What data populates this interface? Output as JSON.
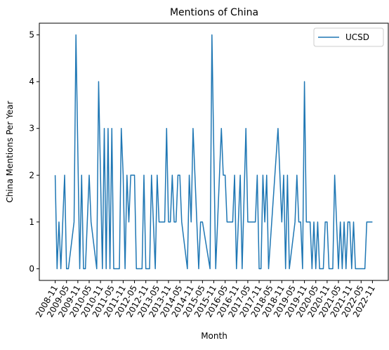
{
  "chart_data": {
    "type": "line",
    "title": "Mentions of China",
    "xlabel": "Month",
    "ylabel": "China Mentions Per Year",
    "ylim": [
      -0.25,
      5.25
    ],
    "yticks": [
      "0",
      "1",
      "2",
      "3",
      "4",
      "5"
    ],
    "xticks": [
      "2008-11",
      "2009-05",
      "2009-11",
      "2010-05",
      "2010-11",
      "2011-05",
      "2011-11",
      "2012-05",
      "2012-11",
      "2013-05",
      "2013-11",
      "2014-05",
      "2014-11",
      "2015-05",
      "2015-11",
      "2016-05",
      "2016-11",
      "2017-05",
      "2017-11",
      "2018-05",
      "2018-11",
      "2019-05",
      "2019-11",
      "2020-05",
      "2020-11",
      "2021-05",
      "2021-11",
      "2022-05",
      "2022-11"
    ],
    "legend": "top-right",
    "grid": false,
    "series": [
      {
        "name": "UCSD",
        "color": "#1f77b4",
        "points": [
          [
            "2008-11",
            2
          ],
          [
            "2008-12",
            0
          ],
          [
            "2009-01",
            1
          ],
          [
            "2009-02",
            0
          ],
          [
            "2009-04",
            2
          ],
          [
            "2009-05",
            0
          ],
          [
            "2009-06",
            0
          ],
          [
            "2009-09",
            1
          ],
          [
            "2009-10",
            5
          ],
          [
            "2009-12",
            0
          ],
          [
            "2010-01",
            2
          ],
          [
            "2010-02",
            0
          ],
          [
            "2010-03",
            0
          ],
          [
            "2010-05",
            2
          ],
          [
            "2010-06",
            1
          ],
          [
            "2010-09",
            0
          ],
          [
            "2010-10",
            4
          ],
          [
            "2010-12",
            0
          ],
          [
            "2011-01",
            3
          ],
          [
            "2011-02",
            0
          ],
          [
            "2011-03",
            3
          ],
          [
            "2011-04",
            0
          ],
          [
            "2011-05",
            3
          ],
          [
            "2011-06",
            0
          ],
          [
            "2011-07",
            0
          ],
          [
            "2011-09",
            0
          ],
          [
            "2011-10",
            3
          ],
          [
            "2011-11",
            2
          ],
          [
            "2011-12",
            0
          ],
          [
            "2012-01",
            2
          ],
          [
            "2012-02",
            1
          ],
          [
            "2012-03",
            2
          ],
          [
            "2012-05",
            2
          ],
          [
            "2012-06",
            0
          ],
          [
            "2012-09",
            0
          ],
          [
            "2012-10",
            2
          ],
          [
            "2012-11",
            0
          ],
          [
            "2013-01",
            0
          ],
          [
            "2013-02",
            2
          ],
          [
            "2013-03",
            1
          ],
          [
            "2013-04",
            0
          ],
          [
            "2013-05",
            2
          ],
          [
            "2013-06",
            1
          ],
          [
            "2013-08",
            1
          ],
          [
            "2013-09",
            1
          ],
          [
            "2013-10",
            3
          ],
          [
            "2013-11",
            1
          ],
          [
            "2013-12",
            1
          ],
          [
            "2014-01",
            2
          ],
          [
            "2014-02",
            1
          ],
          [
            "2014-03",
            1
          ],
          [
            "2014-04",
            2
          ],
          [
            "2014-05",
            2
          ],
          [
            "2014-06",
            1
          ],
          [
            "2014-09",
            0
          ],
          [
            "2014-10",
            2
          ],
          [
            "2014-11",
            1
          ],
          [
            "2014-12",
            3
          ],
          [
            "2015-02",
            1
          ],
          [
            "2015-03",
            0
          ],
          [
            "2015-04",
            1
          ],
          [
            "2015-05",
            1
          ],
          [
            "2015-09",
            0
          ],
          [
            "2015-10",
            5
          ],
          [
            "2015-12",
            0
          ],
          [
            "2016-02",
            2
          ],
          [
            "2016-03",
            3
          ],
          [
            "2016-04",
            2
          ],
          [
            "2016-05",
            2
          ],
          [
            "2016-06",
            1
          ],
          [
            "2016-09",
            1
          ],
          [
            "2016-10",
            2
          ],
          [
            "2016-11",
            0
          ],
          [
            "2017-01",
            2
          ],
          [
            "2017-02",
            0
          ],
          [
            "2017-04",
            3
          ],
          [
            "2017-05",
            1
          ],
          [
            "2017-07",
            1
          ],
          [
            "2017-09",
            1
          ],
          [
            "2017-10",
            2
          ],
          [
            "2017-11",
            0
          ],
          [
            "2017-12",
            0
          ],
          [
            "2018-01",
            2
          ],
          [
            "2018-02",
            1
          ],
          [
            "2018-03",
            2
          ],
          [
            "2018-04",
            0
          ],
          [
            "2018-09",
            3
          ],
          [
            "2018-11",
            1
          ],
          [
            "2018-12",
            2
          ],
          [
            "2019-01",
            0
          ],
          [
            "2019-02",
            2
          ],
          [
            "2019-03",
            0
          ],
          [
            "2019-06",
            1
          ],
          [
            "2019-07",
            2
          ],
          [
            "2019-08",
            1
          ],
          [
            "2019-09",
            1
          ],
          [
            "2019-10",
            0
          ],
          [
            "2019-11",
            4
          ],
          [
            "2019-12",
            1
          ],
          [
            "2020-02",
            1
          ],
          [
            "2020-03",
            0
          ],
          [
            "2020-04",
            1
          ],
          [
            "2020-05",
            0
          ],
          [
            "2020-06",
            1
          ],
          [
            "2020-07",
            0
          ],
          [
            "2020-09",
            0
          ],
          [
            "2020-10",
            1
          ],
          [
            "2020-11",
            1
          ],
          [
            "2020-12",
            0
          ],
          [
            "2021-02",
            0
          ],
          [
            "2021-03",
            2
          ],
          [
            "2021-04",
            1
          ],
          [
            "2021-05",
            0
          ],
          [
            "2021-06",
            1
          ],
          [
            "2021-07",
            0
          ],
          [
            "2021-08",
            1
          ],
          [
            "2021-09",
            0
          ],
          [
            "2021-10",
            1
          ],
          [
            "2021-11",
            1
          ],
          [
            "2021-12",
            0
          ],
          [
            "2022-01",
            1
          ],
          [
            "2022-02",
            0
          ],
          [
            "2022-03",
            0
          ],
          [
            "2022-05",
            0
          ],
          [
            "2022-07",
            0
          ],
          [
            "2022-08",
            1
          ],
          [
            "2022-10",
            1
          ],
          [
            "2022-11",
            1
          ]
        ]
      }
    ]
  }
}
